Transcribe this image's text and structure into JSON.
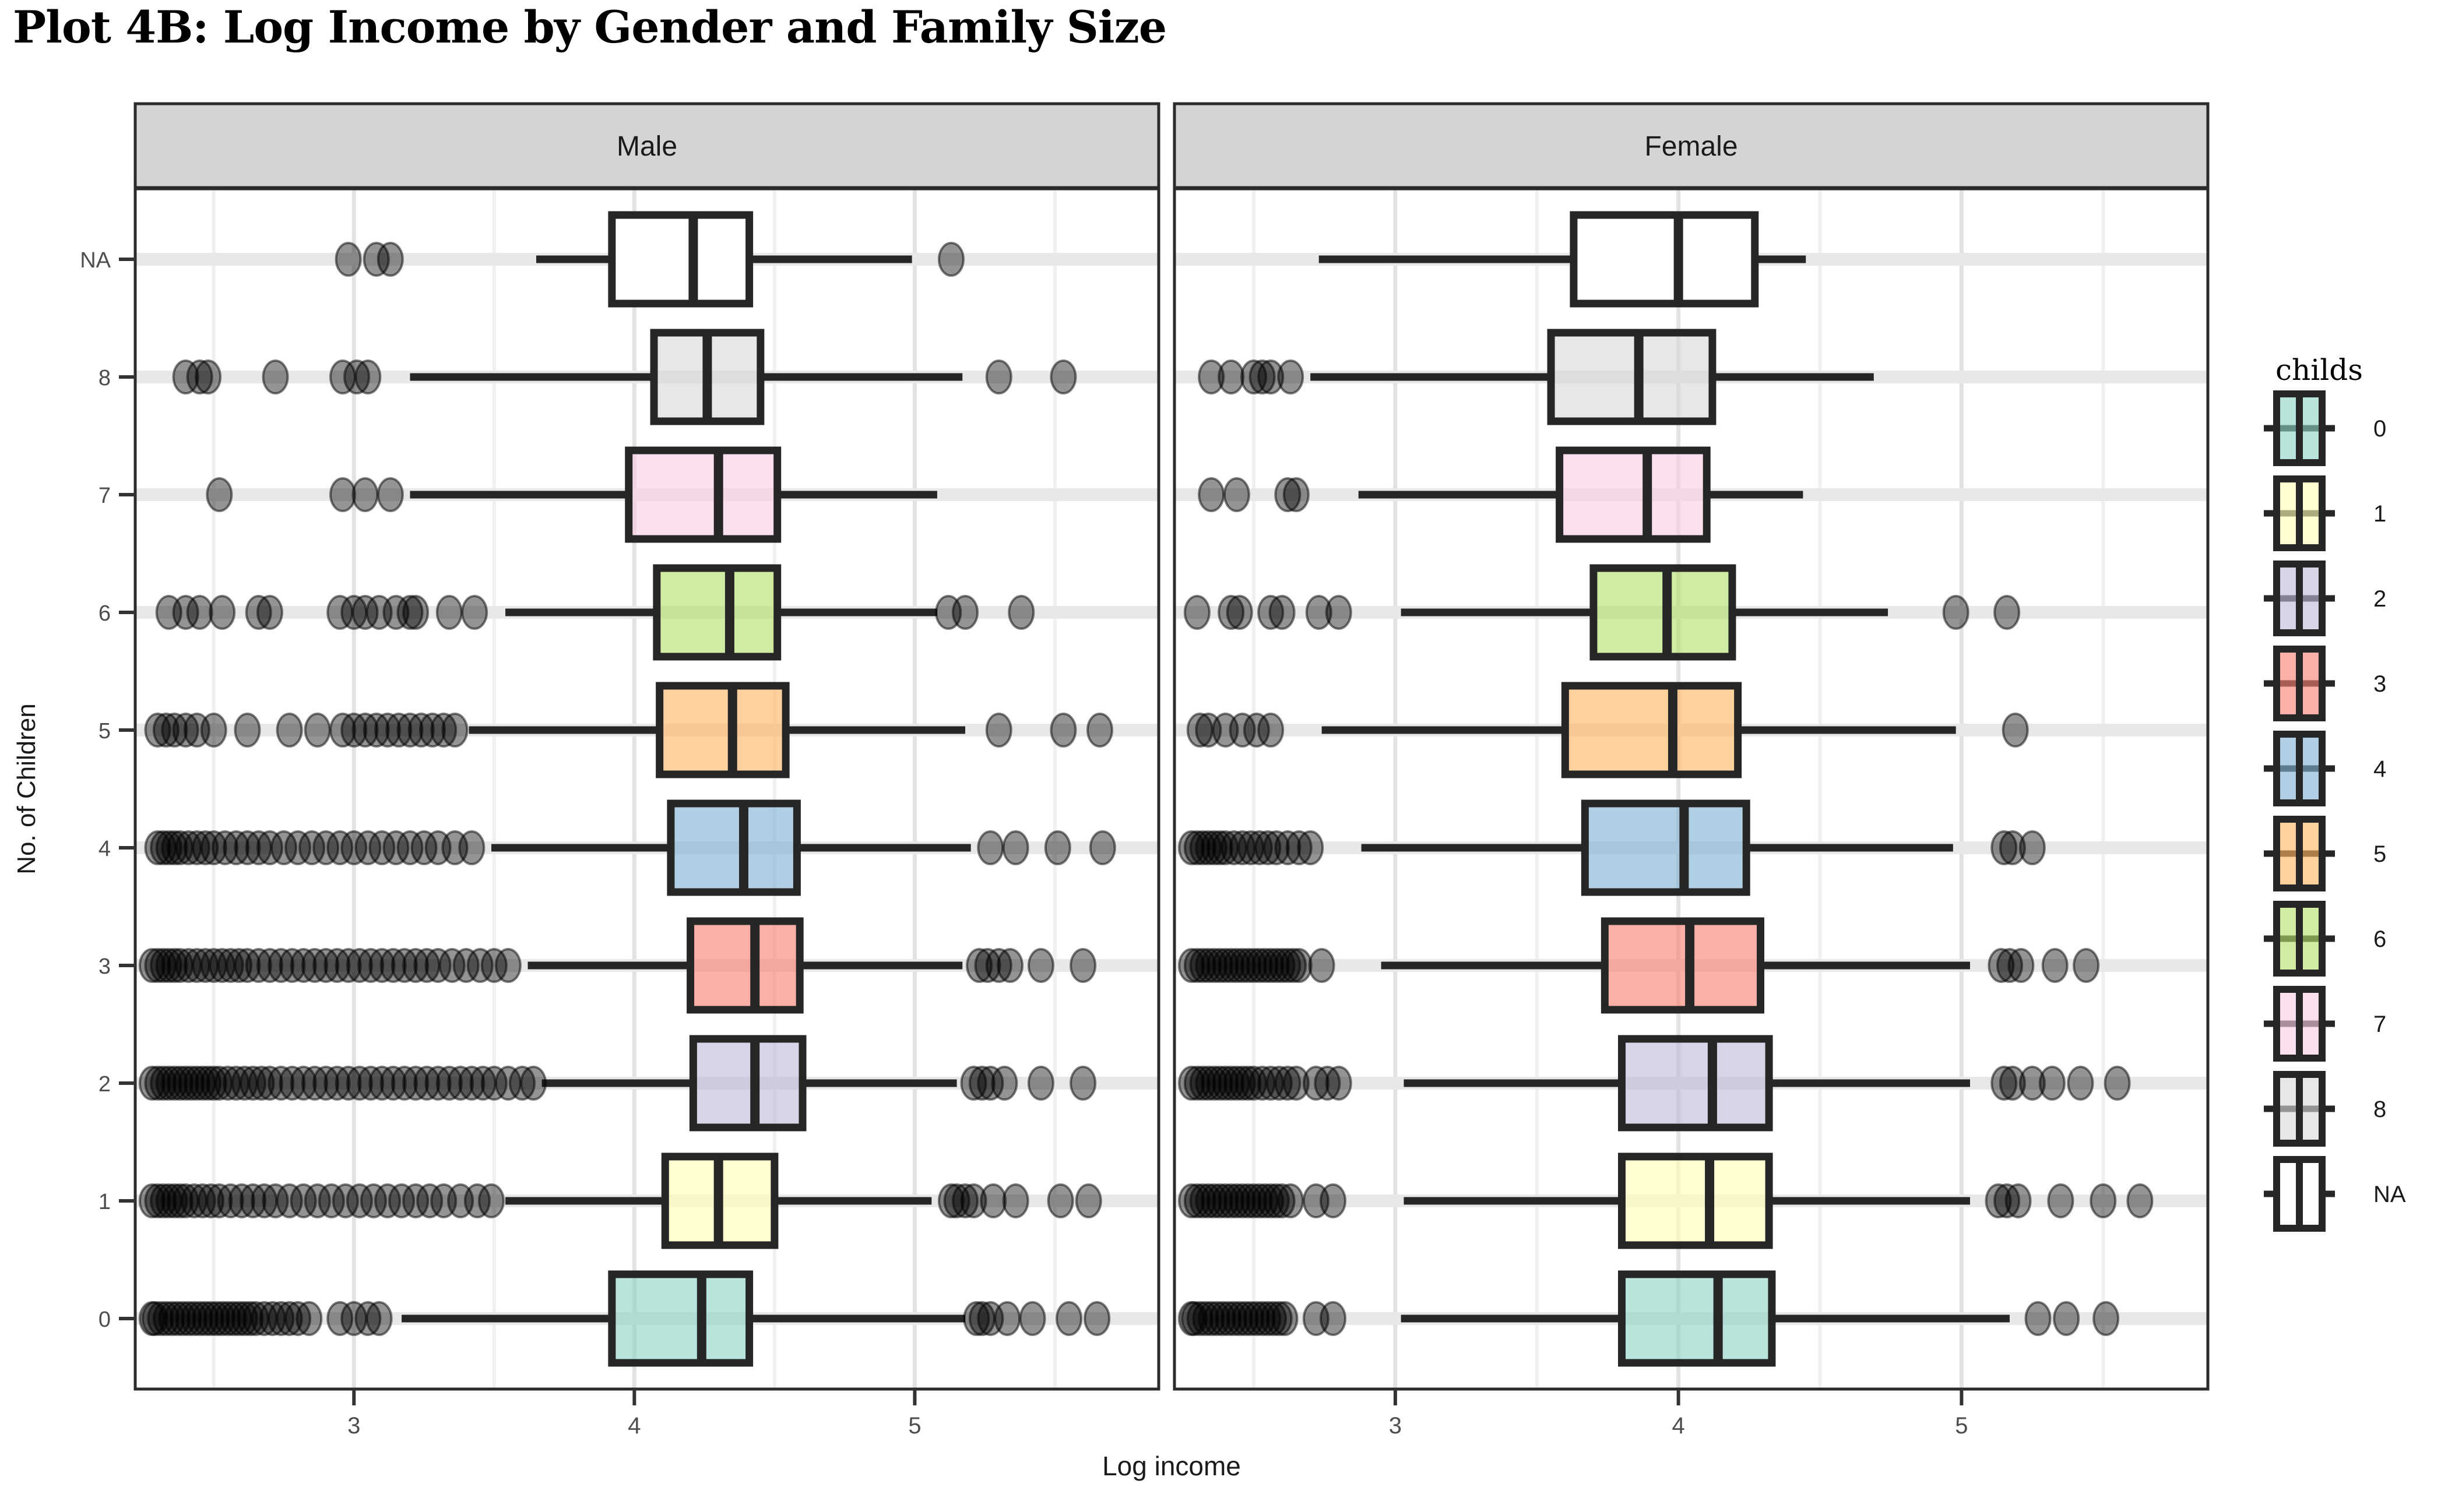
{
  "title": "Plot 4B: Log Income by Gender and Family Size",
  "chart_data": {
    "type": "boxplot",
    "orientation": "horizontal",
    "title": "Plot 4B: Log Income by Gender and Family Size",
    "x_label": "Log income",
    "y_label": "No. of Children",
    "x_ticks": [
      3,
      4,
      5
    ],
    "x_minor_ticks": [
      2.5,
      3.5,
      4.5,
      5.5
    ],
    "x_range": [
      2.22,
      5.87
    ],
    "categories": [
      "0",
      "1",
      "2",
      "3",
      "4",
      "5",
      "6",
      "7",
      "8",
      "NA"
    ],
    "grid": "on",
    "legend": {
      "title": "childs",
      "position": "right",
      "entries": [
        {
          "label": "0",
          "color": "#8DD3C7"
        },
        {
          "label": "1",
          "color": "#FFFFB3"
        },
        {
          "label": "2",
          "color": "#BEBADA"
        },
        {
          "label": "3",
          "color": "#FB8072"
        },
        {
          "label": "4",
          "color": "#80B1D3"
        },
        {
          "label": "5",
          "color": "#FDB462"
        },
        {
          "label": "6",
          "color": "#B3DE69"
        },
        {
          "label": "7",
          "color": "#FCCDE5"
        },
        {
          "label": "8",
          "color": "#D9D9D9"
        },
        {
          "label": "NA",
          "color": "#FFFFFF"
        }
      ]
    },
    "facets": [
      {
        "label": "Male",
        "boxes": [
          {
            "cat": "0",
            "whisker_lo": 3.17,
            "q1": 3.92,
            "median": 4.24,
            "q3": 4.41,
            "whisker_hi": 5.18,
            "outliers_low": [
              2.28,
              2.29,
              2.31,
              2.33,
              2.35,
              2.37,
              2.39,
              2.41,
              2.43,
              2.45,
              2.47,
              2.49,
              2.51,
              2.53,
              2.55,
              2.57,
              2.59,
              2.61,
              2.63,
              2.65,
              2.68,
              2.71,
              2.74,
              2.77,
              2.8,
              2.84,
              2.95,
              3.0,
              3.05,
              3.09
            ],
            "outliers_high": [
              5.22,
              5.24,
              5.27,
              5.33,
              5.42,
              5.55,
              5.65
            ]
          },
          {
            "cat": "1",
            "whisker_lo": 3.54,
            "q1": 4.11,
            "median": 4.3,
            "q3": 4.5,
            "whisker_hi": 5.06,
            "outliers_low": [
              2.28,
              2.3,
              2.32,
              2.34,
              2.36,
              2.38,
              2.4,
              2.43,
              2.46,
              2.49,
              2.52,
              2.56,
              2.6,
              2.64,
              2.68,
              2.72,
              2.77,
              2.82,
              2.87,
              2.92,
              2.97,
              3.02,
              3.07,
              3.12,
              3.17,
              3.22,
              3.27,
              3.32,
              3.38,
              3.44,
              3.49
            ],
            "outliers_high": [
              5.13,
              5.15,
              5.18,
              5.21,
              5.28,
              5.36,
              5.52,
              5.62
            ]
          },
          {
            "cat": "2",
            "whisker_lo": 3.67,
            "q1": 4.21,
            "median": 4.43,
            "q3": 4.6,
            "whisker_hi": 5.15,
            "outliers_low": [
              2.28,
              2.3,
              2.32,
              2.34,
              2.36,
              2.38,
              2.4,
              2.42,
              2.44,
              2.46,
              2.48,
              2.5,
              2.52,
              2.55,
              2.58,
              2.61,
              2.64,
              2.67,
              2.7,
              2.74,
              2.78,
              2.82,
              2.86,
              2.9,
              2.94,
              2.98,
              3.02,
              3.06,
              3.1,
              3.14,
              3.18,
              3.22,
              3.26,
              3.3,
              3.34,
              3.38,
              3.42,
              3.46,
              3.5,
              3.55,
              3.6,
              3.64
            ],
            "outliers_high": [
              5.21,
              5.24,
              5.27,
              5.32,
              5.45,
              5.6
            ]
          },
          {
            "cat": "3",
            "whisker_lo": 3.62,
            "q1": 4.2,
            "median": 4.43,
            "q3": 4.59,
            "whisker_hi": 5.17,
            "outliers_low": [
              2.28,
              2.3,
              2.32,
              2.34,
              2.36,
              2.38,
              2.41,
              2.44,
              2.47,
              2.5,
              2.53,
              2.56,
              2.59,
              2.62,
              2.66,
              2.7,
              2.74,
              2.78,
              2.82,
              2.86,
              2.9,
              2.94,
              2.98,
              3.02,
              3.06,
              3.1,
              3.14,
              3.18,
              3.22,
              3.26,
              3.3,
              3.35,
              3.4,
              3.45,
              3.5,
              3.55
            ],
            "outliers_high": [
              5.23,
              5.26,
              5.3,
              5.34,
              5.45,
              5.6
            ]
          },
          {
            "cat": "4",
            "whisker_lo": 3.49,
            "q1": 4.13,
            "median": 4.39,
            "q3": 4.58,
            "whisker_hi": 5.2,
            "outliers_low": [
              2.3,
              2.32,
              2.34,
              2.36,
              2.38,
              2.41,
              2.44,
              2.47,
              2.5,
              2.54,
              2.58,
              2.62,
              2.66,
              2.7,
              2.75,
              2.8,
              2.85,
              2.9,
              2.95,
              3.0,
              3.05,
              3.1,
              3.15,
              3.2,
              3.25,
              3.3,
              3.36,
              3.42
            ],
            "outliers_high": [
              5.27,
              5.36,
              5.51,
              5.67
            ]
          },
          {
            "cat": "5",
            "whisker_lo": 3.41,
            "q1": 4.09,
            "median": 4.35,
            "q3": 4.54,
            "whisker_hi": 5.18,
            "outliers_low": [
              2.3,
              2.33,
              2.36,
              2.4,
              2.44,
              2.5,
              2.62,
              2.77,
              2.87,
              2.96,
              3.0,
              3.04,
              3.08,
              3.12,
              3.16,
              3.2,
              3.24,
              3.28,
              3.32,
              3.36
            ],
            "outliers_high": [
              5.3,
              5.53,
              5.66
            ]
          },
          {
            "cat": "6",
            "whisker_lo": 3.54,
            "q1": 4.08,
            "median": 4.34,
            "q3": 4.51,
            "whisker_hi": 5.08,
            "outliers_low": [
              2.34,
              2.4,
              2.45,
              2.53,
              2.66,
              2.7,
              2.95,
              3.0,
              3.04,
              3.09,
              3.15,
              3.2,
              3.22,
              3.34,
              3.43
            ],
            "outliers_high": [
              5.12,
              5.18,
              5.38
            ]
          },
          {
            "cat": "7",
            "whisker_lo": 3.2,
            "q1": 3.98,
            "median": 4.3,
            "q3": 4.51,
            "whisker_hi": 5.08,
            "outliers_low": [
              2.52,
              2.96,
              3.04,
              3.13
            ],
            "outliers_high": []
          },
          {
            "cat": "8",
            "whisker_lo": 3.2,
            "q1": 4.07,
            "median": 4.26,
            "q3": 4.45,
            "whisker_hi": 5.17,
            "outliers_low": [
              2.4,
              2.45,
              2.48,
              2.72,
              2.96,
              3.01,
              3.05
            ],
            "outliers_high": [
              5.3,
              5.53
            ]
          },
          {
            "cat": "NA",
            "whisker_lo": 3.65,
            "q1": 3.92,
            "median": 4.21,
            "q3": 4.41,
            "whisker_hi": 4.99,
            "outliers_low": [
              2.98,
              3.08,
              3.13
            ],
            "outliers_high": [
              5.13
            ]
          }
        ]
      },
      {
        "label": "Female",
        "boxes": [
          {
            "cat": "0",
            "whisker_lo": 3.02,
            "q1": 3.8,
            "median": 4.14,
            "q3": 4.33,
            "whisker_hi": 5.17,
            "outliers_low": [
              2.28,
              2.29,
              2.31,
              2.33,
              2.35,
              2.37,
              2.39,
              2.41,
              2.43,
              2.45,
              2.47,
              2.49,
              2.51,
              2.53,
              2.55,
              2.57,
              2.59,
              2.61,
              2.72,
              2.78
            ],
            "outliers_high": [
              5.27,
              5.37,
              5.51
            ]
          },
          {
            "cat": "1",
            "whisker_lo": 3.03,
            "q1": 3.8,
            "median": 4.11,
            "q3": 4.32,
            "whisker_hi": 5.03,
            "outliers_low": [
              2.28,
              2.3,
              2.32,
              2.34,
              2.36,
              2.38,
              2.4,
              2.42,
              2.44,
              2.46,
              2.48,
              2.5,
              2.52,
              2.54,
              2.56,
              2.58,
              2.6,
              2.63,
              2.72,
              2.78
            ],
            "outliers_high": [
              5.13,
              5.16,
              5.2,
              5.35,
              5.5,
              5.63
            ]
          },
          {
            "cat": "2",
            "whisker_lo": 3.03,
            "q1": 3.8,
            "median": 4.12,
            "q3": 4.32,
            "whisker_hi": 5.03,
            "outliers_low": [
              2.28,
              2.3,
              2.32,
              2.34,
              2.36,
              2.38,
              2.4,
              2.42,
              2.44,
              2.46,
              2.48,
              2.5,
              2.53,
              2.56,
              2.59,
              2.62,
              2.65,
              2.72,
              2.76,
              2.8
            ],
            "outliers_high": [
              5.15,
              5.18,
              5.25,
              5.32,
              5.42,
              5.55
            ]
          },
          {
            "cat": "3",
            "whisker_lo": 2.95,
            "q1": 3.74,
            "median": 4.04,
            "q3": 4.29,
            "whisker_hi": 5.03,
            "outliers_low": [
              2.28,
              2.3,
              2.32,
              2.34,
              2.36,
              2.38,
              2.4,
              2.42,
              2.44,
              2.46,
              2.48,
              2.5,
              2.52,
              2.54,
              2.56,
              2.58,
              2.6,
              2.62,
              2.64,
              2.66,
              2.74
            ],
            "outliers_high": [
              5.14,
              5.17,
              5.21,
              5.33,
              5.44
            ]
          },
          {
            "cat": "4",
            "whisker_lo": 2.88,
            "q1": 3.67,
            "median": 4.02,
            "q3": 4.24,
            "whisker_hi": 4.97,
            "outliers_low": [
              2.28,
              2.3,
              2.32,
              2.34,
              2.36,
              2.38,
              2.4,
              2.43,
              2.46,
              2.49,
              2.52,
              2.55,
              2.58,
              2.62,
              2.66,
              2.7
            ],
            "outliers_high": [
              5.15,
              5.18,
              5.25
            ]
          },
          {
            "cat": "5",
            "whisker_lo": 2.74,
            "q1": 3.6,
            "median": 3.98,
            "q3": 4.21,
            "whisker_hi": 4.98,
            "outliers_low": [
              2.31,
              2.34,
              2.4,
              2.46,
              2.51,
              2.56
            ],
            "outliers_high": [
              5.19
            ]
          },
          {
            "cat": "6",
            "whisker_lo": 3.02,
            "q1": 3.7,
            "median": 3.96,
            "q3": 4.19,
            "whisker_hi": 4.74,
            "outliers_low": [
              2.3,
              2.42,
              2.45,
              2.56,
              2.6,
              2.73,
              2.8
            ],
            "outliers_high": [
              4.98,
              5.16
            ]
          },
          {
            "cat": "7",
            "whisker_lo": 2.87,
            "q1": 3.58,
            "median": 3.89,
            "q3": 4.1,
            "whisker_hi": 4.44,
            "outliers_low": [
              2.35,
              2.44,
              2.62,
              2.65
            ],
            "outliers_high": []
          },
          {
            "cat": "8",
            "whisker_lo": 2.7,
            "q1": 3.55,
            "median": 3.86,
            "q3": 4.12,
            "whisker_hi": 4.69,
            "outliers_low": [
              2.35,
              2.42,
              2.5,
              2.53,
              2.56,
              2.63
            ],
            "outliers_high": []
          },
          {
            "cat": "NA",
            "whisker_lo": 2.73,
            "q1": 3.63,
            "median": 4.0,
            "q3": 4.27,
            "whisker_hi": 4.45,
            "outliers_low": [],
            "outliers_high": []
          }
        ]
      }
    ]
  },
  "style": {
    "strip_fill": "#D4D4D4",
    "strip_text_color": "#1A1A1A",
    "panel_border": "#2B2B2B",
    "box_stroke": "#262626",
    "grid_major_v": "#E2E2E2",
    "grid_minor_v": "#F0F0F0",
    "grid_major_h": "#E8E8E8",
    "tick_color": "#333333",
    "tick_label_color": "#4D4D4D",
    "axis_title_color": "#1A1A1A",
    "outlier_fill": "rgba(0,0,0,0.42)",
    "outlier_stroke": "rgba(0,0,0,0.50)",
    "box_fill_opacity": 0.62,
    "na_fill_opacity": 1
  }
}
